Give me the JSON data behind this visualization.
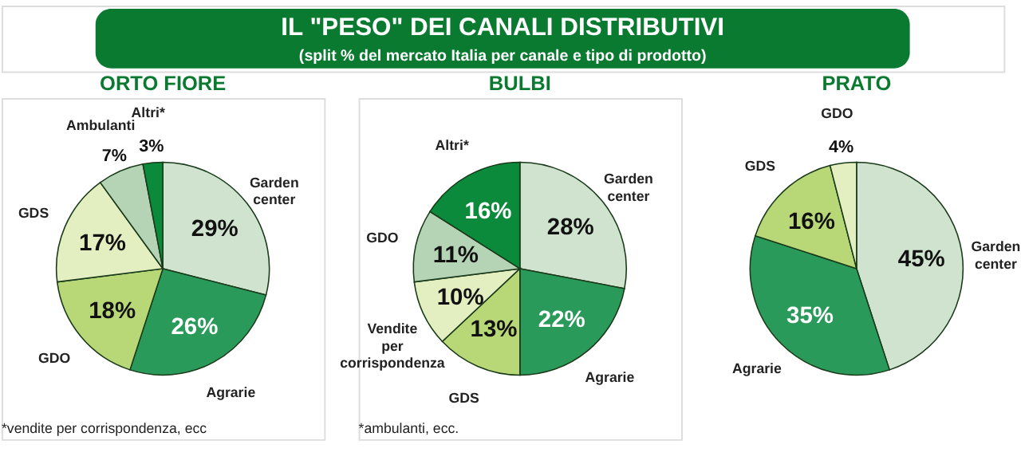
{
  "chart_data": [
    {
      "type": "pie",
      "title": "ORTO FIORE",
      "categories": [
        "Garden center",
        "Agrarie",
        "GDO",
        "GDS",
        "Ambulanti",
        "Altri*"
      ],
      "values": [
        29,
        26,
        18,
        17,
        7,
        3
      ],
      "value_labels": [
        "29%",
        "26%",
        "18%",
        "17%",
        "7%",
        "3%"
      ],
      "colors": [
        "#cfe3cf",
        "#2a9a5a",
        "#b8d878",
        "#e3efc0",
        "#b5d3b5",
        "#0a8a3a"
      ],
      "legend": false,
      "annotations": [
        "IL \"PESO\" DEI CANALI DISTRIBUTIVI",
        "(split % del mercato Italia per canale e tipo di prodotto)",
        "*vendite per corrispondenza, ecc"
      ]
    },
    {
      "type": "pie",
      "title": "BULBI",
      "categories": [
        "Garden center",
        "Agrarie",
        "GDS",
        "Vendite per corrispondenza",
        "GDO",
        "Altri*"
      ],
      "values": [
        28,
        22,
        13,
        10,
        11,
        16
      ],
      "value_labels": [
        "28%",
        "22%",
        "13%",
        "10%",
        "11%",
        "16%"
      ],
      "colors": [
        "#cfe3cf",
        "#2a9a5a",
        "#b8d878",
        "#e3efc0",
        "#b5d3b5",
        "#0a8a3a"
      ],
      "legend": false,
      "annotations": [
        "*ambulanti, ecc."
      ]
    },
    {
      "type": "pie",
      "title": "PRATO",
      "categories": [
        "Garden center",
        "Agrarie",
        "GDS",
        "GDO"
      ],
      "values": [
        45,
        35,
        16,
        4
      ],
      "value_labels": [
        "45%",
        "35%",
        "16%",
        "4%"
      ],
      "colors": [
        "#cfe3cf",
        "#2a9a5a",
        "#b8d878",
        "#e3efc0"
      ],
      "legend": false
    }
  ]
}
